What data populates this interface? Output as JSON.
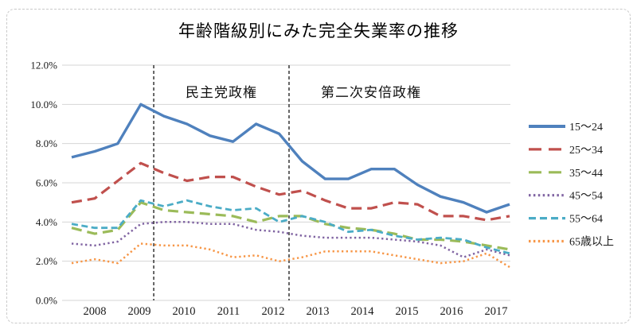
{
  "chart_data": {
    "type": "line",
    "title": "年齢階級別にみた完全失業率の推移",
    "x_tick_labels": [
      "2008",
      "2009",
      "2010",
      "2011",
      "2012",
      "2013",
      "2014",
      "2015",
      "2016",
      "2017"
    ],
    "x_structure": "20 semi-annual data points (2 per year), year labels centered under each pair's second point",
    "y_tick_labels": [
      "0.0%",
      "2.0%",
      "4.0%",
      "6.0%",
      "8.0%",
      "10.0%",
      "12.0%"
    ],
    "ylim": [
      0,
      12
    ],
    "y_unit": "%",
    "grid": true,
    "legend_position": "right",
    "vline_annotations": [
      {
        "label": "民主党政権",
        "x_point_index": 3.56,
        "line_style": "dashed-black"
      },
      {
        "label": "第二次安倍政権",
        "x_point_index": 9.43,
        "line_style": "dashed-black"
      }
    ],
    "series": [
      {
        "name": "15〜24",
        "color": "#4F81BD",
        "style": "solid",
        "values": [
          7.3,
          7.6,
          8.0,
          10.0,
          9.4,
          9.0,
          8.4,
          8.1,
          9.0,
          8.5,
          7.1,
          6.2,
          6.2,
          6.7,
          6.7,
          5.9,
          5.3,
          5.0,
          4.5,
          4.9
        ]
      },
      {
        "name": "25〜34",
        "color": "#C0504D",
        "style": "long-dash",
        "values": [
          5.0,
          5.2,
          6.1,
          7.0,
          6.5,
          6.1,
          6.3,
          6.3,
          5.8,
          5.4,
          5.6,
          5.1,
          4.7,
          4.7,
          5.0,
          4.9,
          4.3,
          4.3,
          4.1,
          4.3
        ]
      },
      {
        "name": "35〜44",
        "color": "#9BBB59",
        "style": "long-dash",
        "values": [
          3.7,
          3.4,
          3.6,
          5.0,
          4.6,
          4.5,
          4.4,
          4.3,
          4.0,
          4.3,
          4.3,
          3.9,
          3.7,
          3.6,
          3.4,
          3.1,
          3.1,
          3.0,
          2.8,
          2.6
        ]
      },
      {
        "name": "45〜54",
        "color": "#8064A2",
        "style": "dot",
        "values": [
          2.9,
          2.8,
          3.0,
          3.9,
          4.0,
          4.0,
          3.9,
          3.9,
          3.6,
          3.5,
          3.3,
          3.2,
          3.2,
          3.2,
          3.1,
          3.0,
          2.8,
          2.2,
          2.6,
          2.3
        ]
      },
      {
        "name": "55〜64",
        "color": "#4BACC6",
        "style": "dash",
        "values": [
          3.9,
          3.7,
          3.7,
          5.1,
          4.8,
          5.1,
          4.8,
          4.6,
          4.7,
          4.0,
          4.3,
          4.0,
          3.5,
          3.6,
          3.3,
          3.1,
          3.2,
          3.1,
          2.7,
          2.4
        ]
      },
      {
        "name": "65歳以上",
        "color": "#F79646",
        "style": "dot",
        "values": [
          1.9,
          2.1,
          1.9,
          2.9,
          2.8,
          2.8,
          2.6,
          2.2,
          2.3,
          2.0,
          2.2,
          2.5,
          2.5,
          2.5,
          2.3,
          2.1,
          1.9,
          2.0,
          2.4,
          1.7
        ]
      }
    ],
    "colors": {
      "grid": "#d6d6d6",
      "vline": "#262626",
      "border_dashed": "#c9c9c9",
      "text": "#1a1a1a"
    }
  }
}
